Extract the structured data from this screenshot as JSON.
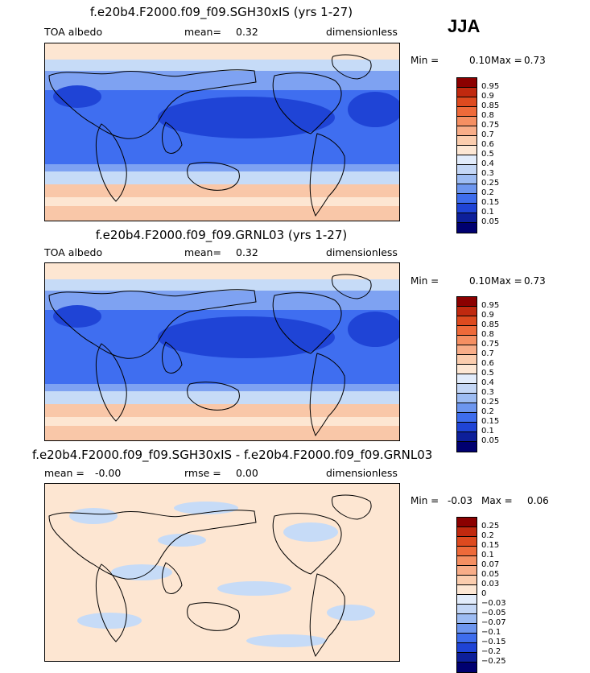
{
  "season": "JJA",
  "colors": {
    "ocean_dark": "#1f44d6",
    "ocean_mid": "#3f6ef0",
    "ocean_light": "#7ea2f2",
    "pale_blue": "#c6dbf7",
    "pale_peach": "#fde6d2",
    "peach": "#f9c7a8",
    "coast": "#000000"
  },
  "panels": [
    {
      "title": "f.e20b4.F2000.f09_f09.SGH30xIS (yrs 1-27)",
      "left_label": "TOA albedo",
      "stat1_label": "mean=",
      "stat1_value": "0.32",
      "stat2_label": "",
      "stat2_value": "",
      "units": "dimensionless",
      "min_label": "Min =",
      "min_value": "0.10",
      "max_label": "Max =",
      "max_value": "0.73",
      "colorbar": {
        "labels": [
          "0.95",
          "0.9",
          "0.85",
          "0.8",
          "0.75",
          "0.7",
          "0.6",
          "0.5",
          "0.4",
          "0.3",
          "0.25",
          "0.2",
          "0.15",
          "0.1",
          "0.05"
        ],
        "colors": [
          "#8b0000",
          "#c0290f",
          "#dd4a1f",
          "#ee6a3a",
          "#f58f62",
          "#f8ad88",
          "#fbcdae",
          "#fde7d4",
          "#e2ecfb",
          "#c4d7f6",
          "#9dbcf3",
          "#6d96ef",
          "#3e6ded",
          "#1f44d6",
          "#0d1f9a",
          "#000070"
        ]
      }
    },
    {
      "title": "f.e20b4.F2000.f09_f09.GRNL03 (yrs 1-27)",
      "left_label": "TOA albedo",
      "stat1_label": "mean=",
      "stat1_value": "0.32",
      "stat2_label": "",
      "stat2_value": "",
      "units": "dimensionless",
      "min_label": "Min =",
      "min_value": "0.10",
      "max_label": "Max =",
      "max_value": "0.73",
      "colorbar": {
        "labels": [
          "0.95",
          "0.9",
          "0.85",
          "0.8",
          "0.75",
          "0.7",
          "0.6",
          "0.5",
          "0.4",
          "0.3",
          "0.25",
          "0.2",
          "0.15",
          "0.1",
          "0.05"
        ],
        "colors": [
          "#8b0000",
          "#c0290f",
          "#dd4a1f",
          "#ee6a3a",
          "#f58f62",
          "#f8ad88",
          "#fbcdae",
          "#fde7d4",
          "#e2ecfb",
          "#c4d7f6",
          "#9dbcf3",
          "#6d96ef",
          "#3e6ded",
          "#1f44d6",
          "#0d1f9a",
          "#000070"
        ]
      }
    },
    {
      "title": "f.e20b4.F2000.f09_f09.SGH30xIS - f.e20b4.F2000.f09_f09.GRNL03",
      "left_label": "",
      "stat1_label": "mean =",
      "stat1_value": "-0.00",
      "stat2_label": "rmse =",
      "stat2_value": "0.00",
      "units": "dimensionless",
      "min_label": "Min =",
      "min_value": "-0.03",
      "max_label": "Max =",
      "max_value": "0.06",
      "colorbar": {
        "labels": [
          "0.25",
          "0.2",
          "0.15",
          "0.1",
          "0.07",
          "0.05",
          "0.03",
          "0",
          "-0.03",
          "-0.05",
          "-0.07",
          "-0.1",
          "-0.15",
          "-0.2",
          "-0.25"
        ],
        "colors": [
          "#8b0000",
          "#c0290f",
          "#dd4a1f",
          "#ee6a3a",
          "#f58f62",
          "#f8ad88",
          "#fbcdae",
          "#fde7d4",
          "#e2ecfb",
          "#c4d7f6",
          "#9dbcf3",
          "#6d96ef",
          "#3e6ded",
          "#1f44d6",
          "#0d1f9a",
          "#000070"
        ]
      }
    }
  ]
}
